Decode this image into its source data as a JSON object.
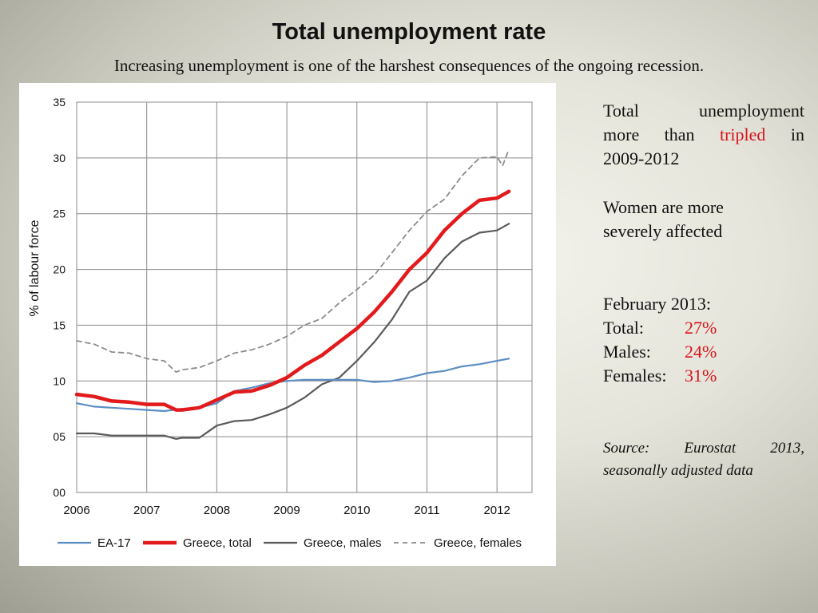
{
  "title": "Total unemployment rate",
  "subtitle": "Increasing unemployment is one of the harshest consequences of the ongoing recession.",
  "side_panel": {
    "p1_line1": "Total unemployment",
    "p1_line2_pre": "more than",
    "p1_highlight": "tripled",
    "p1_line2_post": "in",
    "p1_line3": "2009-2012",
    "p2_line1": "Women are more",
    "p2_line2": "severely affected",
    "feb_heading": "February 2013:",
    "stats": [
      {
        "label": "Total:",
        "value": "27%"
      },
      {
        "label": "Males:",
        "value": "24%"
      },
      {
        "label": "Females:",
        "value": "31%"
      }
    ],
    "source_line1": "Source: Eurostat 2013,",
    "source_line2": "seasonally adjusted data"
  },
  "chart_data": {
    "type": "line",
    "ylabel": "% of labour force",
    "xlabel": "",
    "ylim": [
      0,
      35
    ],
    "xlim": [
      2006,
      2012.5
    ],
    "y_ticks": [
      "00",
      "05",
      "10",
      "15",
      "20",
      "25",
      "30",
      "35"
    ],
    "x_ticks": [
      "2006",
      "2007",
      "2008",
      "2009",
      "2010",
      "2011",
      "2012"
    ],
    "grid": true,
    "legend": "bottom",
    "series": [
      {
        "name": "EA-17",
        "color": "#5b8ec4",
        "style": "solid",
        "x": [
          2006.0,
          2006.25,
          2006.5,
          2006.75,
          2007.0,
          2007.25,
          2007.5,
          2007.75,
          2008.0,
          2008.25,
          2008.5,
          2008.75,
          2009.0,
          2009.25,
          2009.5,
          2009.75,
          2010.0,
          2010.25,
          2010.5,
          2010.75,
          2011.0,
          2011.25,
          2011.5,
          2011.75,
          2012.0,
          2012.17
        ],
        "y": [
          8.0,
          7.7,
          7.6,
          7.5,
          7.4,
          7.3,
          7.5,
          7.6,
          8.0,
          9.1,
          9.4,
          9.8,
          10.0,
          10.1,
          10.1,
          10.1,
          10.1,
          9.9,
          10.0,
          10.3,
          10.7,
          10.9,
          11.3,
          11.5,
          11.8,
          12.0
        ]
      },
      {
        "name": "Greece, total",
        "color": "#e31a1c",
        "style": "thick",
        "x": [
          2006.0,
          2006.25,
          2006.5,
          2006.75,
          2007.0,
          2007.25,
          2007.42,
          2007.5,
          2007.75,
          2008.0,
          2008.25,
          2008.5,
          2008.75,
          2009.0,
          2009.25,
          2009.5,
          2009.75,
          2010.0,
          2010.25,
          2010.5,
          2010.75,
          2011.0,
          2011.25,
          2011.5,
          2011.75,
          2012.0,
          2012.17
        ],
        "y": [
          8.8,
          8.6,
          8.2,
          8.1,
          7.9,
          7.9,
          7.4,
          7.4,
          7.6,
          8.3,
          9.0,
          9.1,
          9.6,
          10.3,
          11.4,
          12.3,
          13.5,
          14.7,
          16.2,
          18.0,
          20.0,
          21.5,
          23.5,
          25.0,
          26.2,
          26.4,
          27.0
        ]
      },
      {
        "name": "Greece, males",
        "color": "#5a5a5a",
        "style": "solid",
        "x": [
          2006.0,
          2006.25,
          2006.5,
          2006.75,
          2007.0,
          2007.25,
          2007.42,
          2007.5,
          2007.75,
          2008.0,
          2008.25,
          2008.5,
          2008.75,
          2009.0,
          2009.25,
          2009.5,
          2009.75,
          2010.0,
          2010.25,
          2010.5,
          2010.75,
          2011.0,
          2011.25,
          2011.5,
          2011.75,
          2012.0,
          2012.17
        ],
        "y": [
          5.3,
          5.3,
          5.1,
          5.1,
          5.1,
          5.1,
          4.8,
          4.9,
          4.9,
          6.0,
          6.4,
          6.5,
          7.0,
          7.6,
          8.5,
          9.7,
          10.3,
          11.8,
          13.5,
          15.5,
          18.0,
          19.0,
          21.0,
          22.5,
          23.3,
          23.5,
          24.1
        ]
      },
      {
        "name": "Greece, females",
        "color": "#8c8c8c",
        "style": "dashed",
        "x": [
          2006.0,
          2006.25,
          2006.5,
          2006.75,
          2007.0,
          2007.25,
          2007.42,
          2007.5,
          2007.75,
          2008.0,
          2008.25,
          2008.5,
          2008.75,
          2009.0,
          2009.25,
          2009.5,
          2009.75,
          2010.0,
          2010.25,
          2010.5,
          2010.75,
          2011.0,
          2011.25,
          2011.5,
          2011.75,
          2012.0,
          2012.08,
          2012.17
        ],
        "y": [
          13.6,
          13.3,
          12.6,
          12.5,
          12.0,
          11.8,
          10.8,
          11.0,
          11.2,
          11.8,
          12.5,
          12.8,
          13.3,
          14.0,
          15.0,
          15.6,
          17.0,
          18.2,
          19.5,
          21.5,
          23.5,
          25.2,
          26.3,
          28.4,
          30.0,
          30.1,
          29.3,
          30.8
        ]
      }
    ]
  }
}
